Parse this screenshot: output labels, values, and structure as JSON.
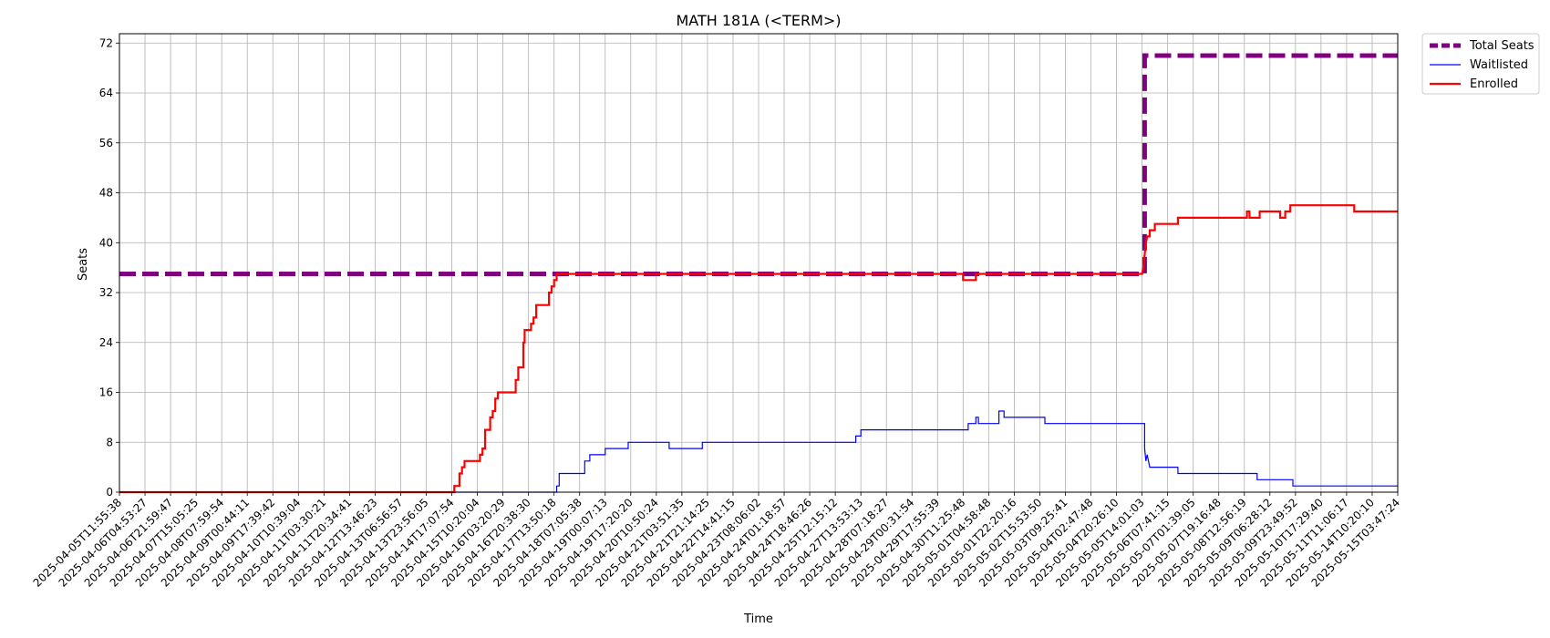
{
  "chart_data": {
    "type": "line",
    "title": "MATH 181A (<TERM>)",
    "xlabel": "Time",
    "ylabel": "Seats",
    "ylim": [
      0,
      73.5
    ],
    "yticks": [
      0,
      8,
      16,
      24,
      32,
      40,
      48,
      56,
      64,
      72
    ],
    "grid": true,
    "legend_position": "outside-top-right",
    "x_ticks": [
      "2025-04-05T11:55:38",
      "2025-04-06T04:53:27",
      "2025-04-06T21:59:47",
      "2025-04-07T15:05:25",
      "2025-04-08T07:59:54",
      "2025-04-09T00:44:11",
      "2025-04-09T17:39:42",
      "2025-04-10T10:39:04",
      "2025-04-11T03:30:21",
      "2025-04-11T20:34:41",
      "2025-04-12T13:46:23",
      "2025-04-13T06:56:57",
      "2025-04-13T23:56:05",
      "2025-04-14T17:07:54",
      "2025-04-15T10:20:04",
      "2025-04-16T03:20:29",
      "2025-04-16T20:38:30",
      "2025-04-17T13:50:18",
      "2025-04-18T07:05:38",
      "2025-04-19T00:07:13",
      "2025-04-19T17:20:20",
      "2025-04-20T10:50:24",
      "2025-04-21T03:51:35",
      "2025-04-21T21:14:25",
      "2025-04-22T14:41:15",
      "2025-04-23T08:06:02",
      "2025-04-24T01:18:57",
      "2025-04-24T18:46:26",
      "2025-04-25T12:15:12",
      "2025-04-27T13:53:13",
      "2025-04-28T07:18:27",
      "2025-04-29T00:31:54",
      "2025-04-29T17:55:39",
      "2025-04-30T11:25:48",
      "2025-05-01T04:58:48",
      "2025-05-01T22:20:16",
      "2025-05-02T15:53:50",
      "2025-05-03T09:25:41",
      "2025-05-04T02:47:48",
      "2025-05-04T20:26:10",
      "2025-05-05T14:01:03",
      "2025-05-06T07:41:15",
      "2025-05-07T01:39:05",
      "2025-05-07T19:16:48",
      "2025-05-08T12:56:19",
      "2025-05-09T06:28:12",
      "2025-05-09T23:49:52",
      "2025-05-10T17:29:40",
      "2025-05-11T11:06:17",
      "2025-05-14T10:20:10",
      "2025-05-15T03:47:24"
    ],
    "x_index_range": [
      0,
      50
    ],
    "series": [
      {
        "name": "Total Seats",
        "color": "#800080",
        "style": "dashed",
        "points": [
          [
            0,
            35
          ],
          [
            40.1,
            35
          ],
          [
            40.1,
            70
          ],
          [
            50,
            70
          ]
        ]
      },
      {
        "name": "Waitlisted",
        "color": "#0000ff",
        "style": "solid",
        "points": [
          [
            0,
            0
          ],
          [
            17.1,
            0
          ],
          [
            17.1,
            1
          ],
          [
            17.2,
            1
          ],
          [
            17.2,
            3
          ],
          [
            18.2,
            3
          ],
          [
            18.2,
            5
          ],
          [
            18.4,
            5
          ],
          [
            18.4,
            6
          ],
          [
            19.0,
            6
          ],
          [
            19.0,
            7
          ],
          [
            19.9,
            7
          ],
          [
            19.9,
            8
          ],
          [
            21.5,
            8
          ],
          [
            21.5,
            7
          ],
          [
            22.8,
            7
          ],
          [
            22.8,
            8
          ],
          [
            28.8,
            8
          ],
          [
            28.8,
            9
          ],
          [
            29.0,
            9
          ],
          [
            29.0,
            10
          ],
          [
            33.2,
            10
          ],
          [
            33.2,
            11
          ],
          [
            33.5,
            11
          ],
          [
            33.5,
            12
          ],
          [
            33.6,
            12
          ],
          [
            33.6,
            11
          ],
          [
            34.4,
            11
          ],
          [
            34.4,
            13
          ],
          [
            34.6,
            13
          ],
          [
            34.6,
            12
          ],
          [
            36.2,
            12
          ],
          [
            36.2,
            11
          ],
          [
            40.1,
            11
          ],
          [
            40.1,
            7
          ],
          [
            40.15,
            5
          ],
          [
            40.2,
            6
          ],
          [
            40.25,
            5
          ],
          [
            40.3,
            4
          ],
          [
            41.4,
            4
          ],
          [
            41.4,
            3
          ],
          [
            44.5,
            3
          ],
          [
            44.5,
            2
          ],
          [
            45.9,
            2
          ],
          [
            45.9,
            1
          ],
          [
            50,
            1
          ]
        ]
      },
      {
        "name": "Enrolled",
        "color": "#ff0000",
        "style": "solid",
        "points": [
          [
            0,
            0
          ],
          [
            13.1,
            0
          ],
          [
            13.1,
            1
          ],
          [
            13.3,
            1
          ],
          [
            13.3,
            3
          ],
          [
            13.4,
            3
          ],
          [
            13.4,
            4
          ],
          [
            13.5,
            4
          ],
          [
            13.5,
            5
          ],
          [
            14.1,
            5
          ],
          [
            14.1,
            6
          ],
          [
            14.2,
            6
          ],
          [
            14.2,
            7
          ],
          [
            14.3,
            7
          ],
          [
            14.3,
            10
          ],
          [
            14.5,
            10
          ],
          [
            14.5,
            12
          ],
          [
            14.6,
            12
          ],
          [
            14.6,
            13
          ],
          [
            14.7,
            13
          ],
          [
            14.7,
            15
          ],
          [
            14.8,
            15
          ],
          [
            14.8,
            16
          ],
          [
            15.5,
            16
          ],
          [
            15.5,
            18
          ],
          [
            15.6,
            18
          ],
          [
            15.6,
            20
          ],
          [
            15.8,
            20
          ],
          [
            15.8,
            24
          ],
          [
            15.85,
            24
          ],
          [
            15.85,
            26
          ],
          [
            16.1,
            26
          ],
          [
            16.1,
            27
          ],
          [
            16.2,
            27
          ],
          [
            16.2,
            28
          ],
          [
            16.3,
            28
          ],
          [
            16.3,
            30
          ],
          [
            16.8,
            30
          ],
          [
            16.8,
            32
          ],
          [
            16.9,
            32
          ],
          [
            16.9,
            33
          ],
          [
            17.0,
            33
          ],
          [
            17.0,
            34
          ],
          [
            17.1,
            34
          ],
          [
            17.1,
            35
          ],
          [
            33.0,
            35
          ],
          [
            33.0,
            34
          ],
          [
            33.5,
            34
          ],
          [
            33.5,
            35
          ],
          [
            40.0,
            35
          ],
          [
            40.05,
            36
          ],
          [
            40.1,
            38
          ],
          [
            40.15,
            40
          ],
          [
            40.2,
            41
          ],
          [
            40.3,
            41
          ],
          [
            40.3,
            42
          ],
          [
            40.5,
            42
          ],
          [
            40.5,
            43
          ],
          [
            41.4,
            43
          ],
          [
            41.4,
            44
          ],
          [
            44.1,
            44
          ],
          [
            44.1,
            45
          ],
          [
            44.2,
            45
          ],
          [
            44.2,
            44
          ],
          [
            44.6,
            44
          ],
          [
            44.6,
            45
          ],
          [
            45.4,
            45
          ],
          [
            45.4,
            44
          ],
          [
            45.6,
            44
          ],
          [
            45.6,
            45
          ],
          [
            45.8,
            45
          ],
          [
            45.8,
            46
          ],
          [
            48.3,
            46
          ],
          [
            48.3,
            45
          ],
          [
            50,
            45
          ]
        ]
      }
    ]
  }
}
